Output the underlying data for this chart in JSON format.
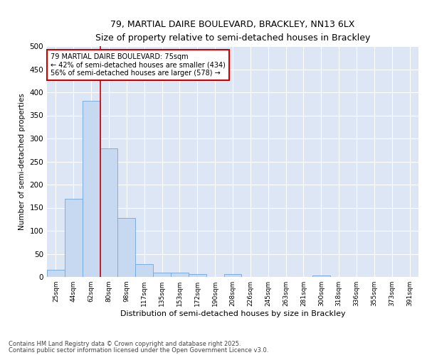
{
  "title_line1": "79, MARTIAL DAIRE BOULEVARD, BRACKLEY, NN13 6LX",
  "title_line2": "Size of property relative to semi-detached houses in Brackley",
  "xlabel": "Distribution of semi-detached houses by size in Brackley",
  "ylabel": "Number of semi-detached properties",
  "bins": [
    "25sqm",
    "44sqm",
    "62sqm",
    "80sqm",
    "98sqm",
    "117sqm",
    "135sqm",
    "153sqm",
    "172sqm",
    "190sqm",
    "208sqm",
    "226sqm",
    "245sqm",
    "263sqm",
    "281sqm",
    "300sqm",
    "318sqm",
    "336sqm",
    "355sqm",
    "373sqm",
    "391sqm"
  ],
  "values": [
    16,
    170,
    382,
    278,
    128,
    27,
    9,
    9,
    6,
    0,
    6,
    0,
    0,
    0,
    0,
    3,
    0,
    0,
    0,
    0,
    0
  ],
  "bar_color": "#c6d9f1",
  "bar_edge_color": "#6fa8dc",
  "vline_color": "#cc0000",
  "annotation_title": "79 MARTIAL DAIRE BOULEVARD: 75sqm",
  "annotation_line1": "← 42% of semi-detached houses are smaller (434)",
  "annotation_line2": "56% of semi-detached houses are larger (578) →",
  "annotation_box_color": "#ffffff",
  "annotation_box_edge": "#cc0000",
  "ylim": [
    0,
    500
  ],
  "yticks": [
    0,
    50,
    100,
    150,
    200,
    250,
    300,
    350,
    400,
    450,
    500
  ],
  "background_color": "#dce6f5",
  "footnote1": "Contains HM Land Registry data © Crown copyright and database right 2025.",
  "footnote2": "Contains public sector information licensed under the Open Government Licence v3.0."
}
